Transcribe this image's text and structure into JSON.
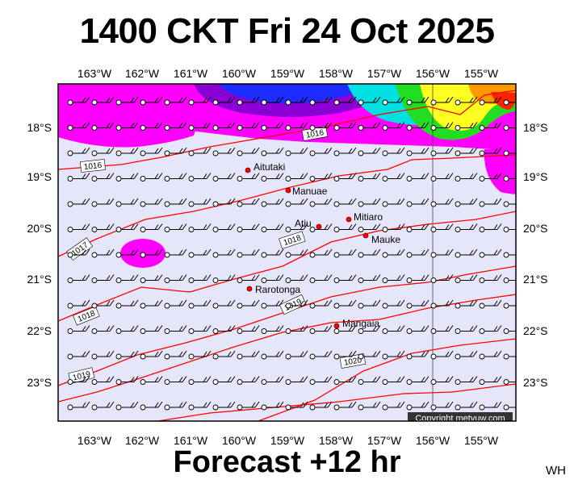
{
  "header": {
    "title": "1400 CKT Fri 24 Oct 2025"
  },
  "footer": {
    "forecast": "Forecast +12 hr",
    "initials": "WH",
    "copyright": "Copyright metvuw.com"
  },
  "map": {
    "lon_labels": [
      "163°W",
      "162°W",
      "161°W",
      "160°W",
      "159°W",
      "158°W",
      "157°W",
      "156°W",
      "155°W"
    ],
    "lat_labels": [
      "18°S",
      "19°S",
      "20°S",
      "21°S",
      "22°S",
      "23°S"
    ],
    "colors": {
      "background": "#e6e6fa",
      "rain_magenta": "#ff00ff",
      "isobar": "#ff0000",
      "land": "#ff0000"
    },
    "places": [
      {
        "name": "Aitutaki"
      },
      {
        "name": "Manuae"
      },
      {
        "name": "Mitiaro"
      },
      {
        "name": "Atiu"
      },
      {
        "name": "Mauke"
      },
      {
        "name": "Rarotonga"
      },
      {
        "name": "Mangaia"
      }
    ],
    "isobars": [
      "1016",
      "1016",
      "1017",
      "1018",
      "1018",
      "1019",
      "1019",
      "1020"
    ]
  }
}
